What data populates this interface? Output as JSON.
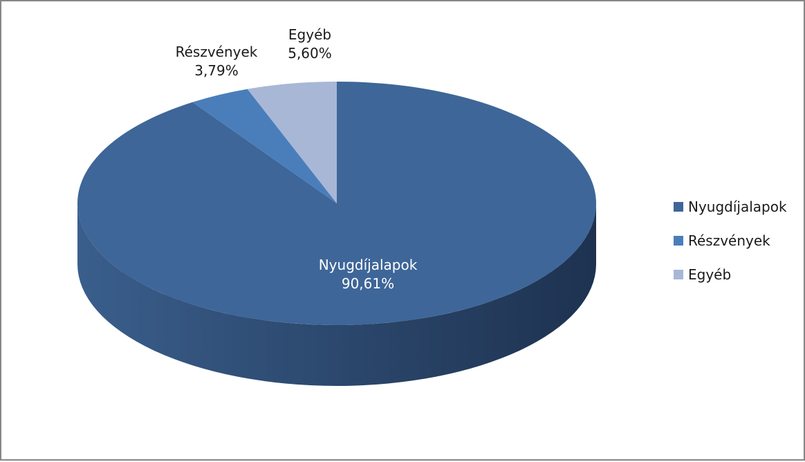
{
  "chart_data": {
    "type": "pie",
    "style": "3d",
    "title": "",
    "categories": [
      "Nyugdíjalapok",
      "Részvények",
      "Egyéb"
    ],
    "values": [
      90.61,
      3.79,
      5.6
    ],
    "value_labels": [
      "90,61%",
      "3,79%",
      "5,60%"
    ],
    "colors": [
      "#3E6698",
      "#4A7EBB",
      "#A8B7D6"
    ],
    "legend_position": "right"
  }
}
